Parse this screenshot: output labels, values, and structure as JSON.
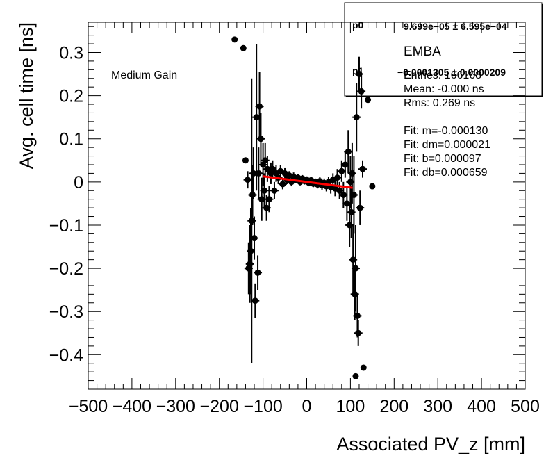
{
  "chart_data": {
    "type": "scatter",
    "xlabel": "Associated PV_z [mm]",
    "ylabel": "Avg. cell time [ns]",
    "xlim": [
      -500,
      500
    ],
    "ylim": [
      -0.48,
      0.37
    ],
    "x_ticks": [
      -500,
      -400,
      -300,
      -200,
      -100,
      0,
      100,
      200,
      300,
      400,
      500
    ],
    "x_tick_labels": [
      "−500",
      "−400",
      "−300",
      "−200",
      "−100",
      "0",
      "100",
      "200",
      "300",
      "400",
      "500"
    ],
    "y_ticks": [
      -0.4,
      -0.3,
      -0.2,
      -0.1,
      0,
      0.1,
      0.2,
      0.3
    ],
    "y_tick_labels": [
      "−0.4",
      "−0.3",
      "−0.2",
      "−0.1",
      "0",
      "0.1",
      "0.2",
      "0.3"
    ],
    "grid": false,
    "annotation": "Medium Gain",
    "marker_color": "#000000",
    "fit_color": "#ff0000",
    "points": [
      {
        "x": -165,
        "y": 0.33,
        "e": 0
      },
      {
        "x": -145,
        "y": 0.31,
        "e": 0
      },
      {
        "x": -140,
        "y": 0.05,
        "e": 0
      },
      {
        "x": -135,
        "y": 0.005,
        "e": 0.02
      },
      {
        "x": -133,
        "y": -0.2,
        "e": 0.06
      },
      {
        "x": -130,
        "y": -0.19,
        "e": 0.09
      },
      {
        "x": -128,
        "y": -0.16,
        "e": 0.1
      },
      {
        "x": -126,
        "y": -0.09,
        "e": 0.33
      },
      {
        "x": -124,
        "y": -0.03,
        "e": 0.07
      },
      {
        "x": -122,
        "y": 0.02,
        "e": 0.06
      },
      {
        "x": -120,
        "y": -0.13,
        "e": 0.05
      },
      {
        "x": -118,
        "y": -0.275,
        "e": 0.04
      },
      {
        "x": -115,
        "y": 0.15,
        "e": 0.17
      },
      {
        "x": -112,
        "y": -0.21,
        "e": 0.04
      },
      {
        "x": -110,
        "y": 0.02,
        "e": 0.06
      },
      {
        "x": -108,
        "y": 0.175,
        "e": 0.08
      },
      {
        "x": -105,
        "y": 0.1,
        "e": 0.06
      },
      {
        "x": -103,
        "y": -0.04,
        "e": 0.05
      },
      {
        "x": -100,
        "y": 0.04,
        "e": 0.05
      },
      {
        "x": -97,
        "y": -0.02,
        "e": 0.04
      },
      {
        "x": -95,
        "y": 0.05,
        "e": 0.04
      },
      {
        "x": -92,
        "y": -0.06,
        "e": 0.03
      },
      {
        "x": -90,
        "y": 0.03,
        "e": 0.03
      },
      {
        "x": -86,
        "y": -0.04,
        "e": 0.03
      },
      {
        "x": -82,
        "y": 0.02,
        "e": 0.025
      },
      {
        "x": -78,
        "y": 0.03,
        "e": 0.02
      },
      {
        "x": -74,
        "y": -0.02,
        "e": 0.02
      },
      {
        "x": -70,
        "y": 0.02,
        "e": 0.02
      },
      {
        "x": -65,
        "y": 0.01,
        "e": 0.015
      },
      {
        "x": -60,
        "y": 0.025,
        "e": 0.015
      },
      {
        "x": -55,
        "y": -0.005,
        "e": 0.012
      },
      {
        "x": -50,
        "y": 0.02,
        "e": 0.012
      },
      {
        "x": -45,
        "y": 0.005,
        "e": 0.01
      },
      {
        "x": -40,
        "y": 0.015,
        "e": 0.01
      },
      {
        "x": -35,
        "y": 0.0,
        "e": 0.01
      },
      {
        "x": -30,
        "y": 0.012,
        "e": 0.01
      },
      {
        "x": -25,
        "y": 0.005,
        "e": 0.008
      },
      {
        "x": -20,
        "y": 0.01,
        "e": 0.008
      },
      {
        "x": -15,
        "y": 0.0,
        "e": 0.008
      },
      {
        "x": -10,
        "y": 0.008,
        "e": 0.008
      },
      {
        "x": -5,
        "y": 0.002,
        "e": 0.008
      },
      {
        "x": 0,
        "y": 0.005,
        "e": 0.008
      },
      {
        "x": 5,
        "y": -0.002,
        "e": 0.008
      },
      {
        "x": 10,
        "y": 0.004,
        "e": 0.008
      },
      {
        "x": 15,
        "y": -0.004,
        "e": 0.008
      },
      {
        "x": 20,
        "y": 0.0,
        "e": 0.008
      },
      {
        "x": 25,
        "y": -0.006,
        "e": 0.009
      },
      {
        "x": 30,
        "y": 0.002,
        "e": 0.01
      },
      {
        "x": 35,
        "y": -0.008,
        "e": 0.01
      },
      {
        "x": 40,
        "y": -0.002,
        "e": 0.01
      },
      {
        "x": 45,
        "y": -0.01,
        "e": 0.012
      },
      {
        "x": 50,
        "y": 0.0,
        "e": 0.012
      },
      {
        "x": 55,
        "y": -0.012,
        "e": 0.015
      },
      {
        "x": 60,
        "y": 0.005,
        "e": 0.015
      },
      {
        "x": 65,
        "y": -0.015,
        "e": 0.018
      },
      {
        "x": 70,
        "y": 0.01,
        "e": 0.02
      },
      {
        "x": 75,
        "y": -0.02,
        "e": 0.02
      },
      {
        "x": 80,
        "y": 0.025,
        "e": 0.025
      },
      {
        "x": 84,
        "y": -0.03,
        "e": 0.03
      },
      {
        "x": 88,
        "y": 0.04,
        "e": 0.03
      },
      {
        "x": 92,
        "y": -0.05,
        "e": 0.04
      },
      {
        "x": 95,
        "y": 0.07,
        "e": 0.05
      },
      {
        "x": 98,
        "y": -0.1,
        "e": 0.05
      },
      {
        "x": 100,
        "y": 0.0,
        "e": 0.06
      },
      {
        "x": 102,
        "y": -0.07,
        "e": 0.06
      },
      {
        "x": 104,
        "y": 0.02,
        "e": 0.07
      },
      {
        "x": 106,
        "y": -0.18,
        "e": 0.08
      },
      {
        "x": 108,
        "y": -0.03,
        "e": 0.09
      },
      {
        "x": 110,
        "y": -0.26,
        "e": 0.06
      },
      {
        "x": 112,
        "y": -0.2,
        "e": 0.1
      },
      {
        "x": 114,
        "y": 0.15,
        "e": 0.08
      },
      {
        "x": 116,
        "y": -0.31,
        "e": 0.05
      },
      {
        "x": 118,
        "y": -0.35,
        "e": 0.03
      },
      {
        "x": 120,
        "y": 0.25,
        "e": 0.04
      },
      {
        "x": 122,
        "y": -0.06,
        "e": 0.04
      },
      {
        "x": 125,
        "y": 0.21,
        "e": 0.04
      },
      {
        "x": 128,
        "y": 0.03,
        "e": 0.02
      },
      {
        "x": 130,
        "y": -0.43,
        "e": 0
      },
      {
        "x": 112,
        "y": -0.45,
        "e": 0
      },
      {
        "x": 140,
        "y": 0.19,
        "e": 0
      },
      {
        "x": 150,
        "y": -0.01,
        "e": 0
      }
    ],
    "fit": {
      "x_start": -100,
      "x_end": 105,
      "slope": -0.00013,
      "intercept": 9.7e-05
    }
  },
  "fit_box": {
    "p0_label": "p0",
    "p0_value": "9.699e−05 ± 6.595e−04",
    "p1_label": "p1",
    "p1_value": "−0.0001305 ± 0.0000209"
  },
  "legend": {
    "title": "EMBA",
    "lines": [
      "Entries: 166168",
      "Mean: -0.000 ns",
      "Rms: 0.269 ns",
      "",
      "Fit: m=-0.000130",
      "Fit: dm=0.000021",
      "Fit: b=0.000097",
      "Fit: db=0.000659"
    ]
  }
}
